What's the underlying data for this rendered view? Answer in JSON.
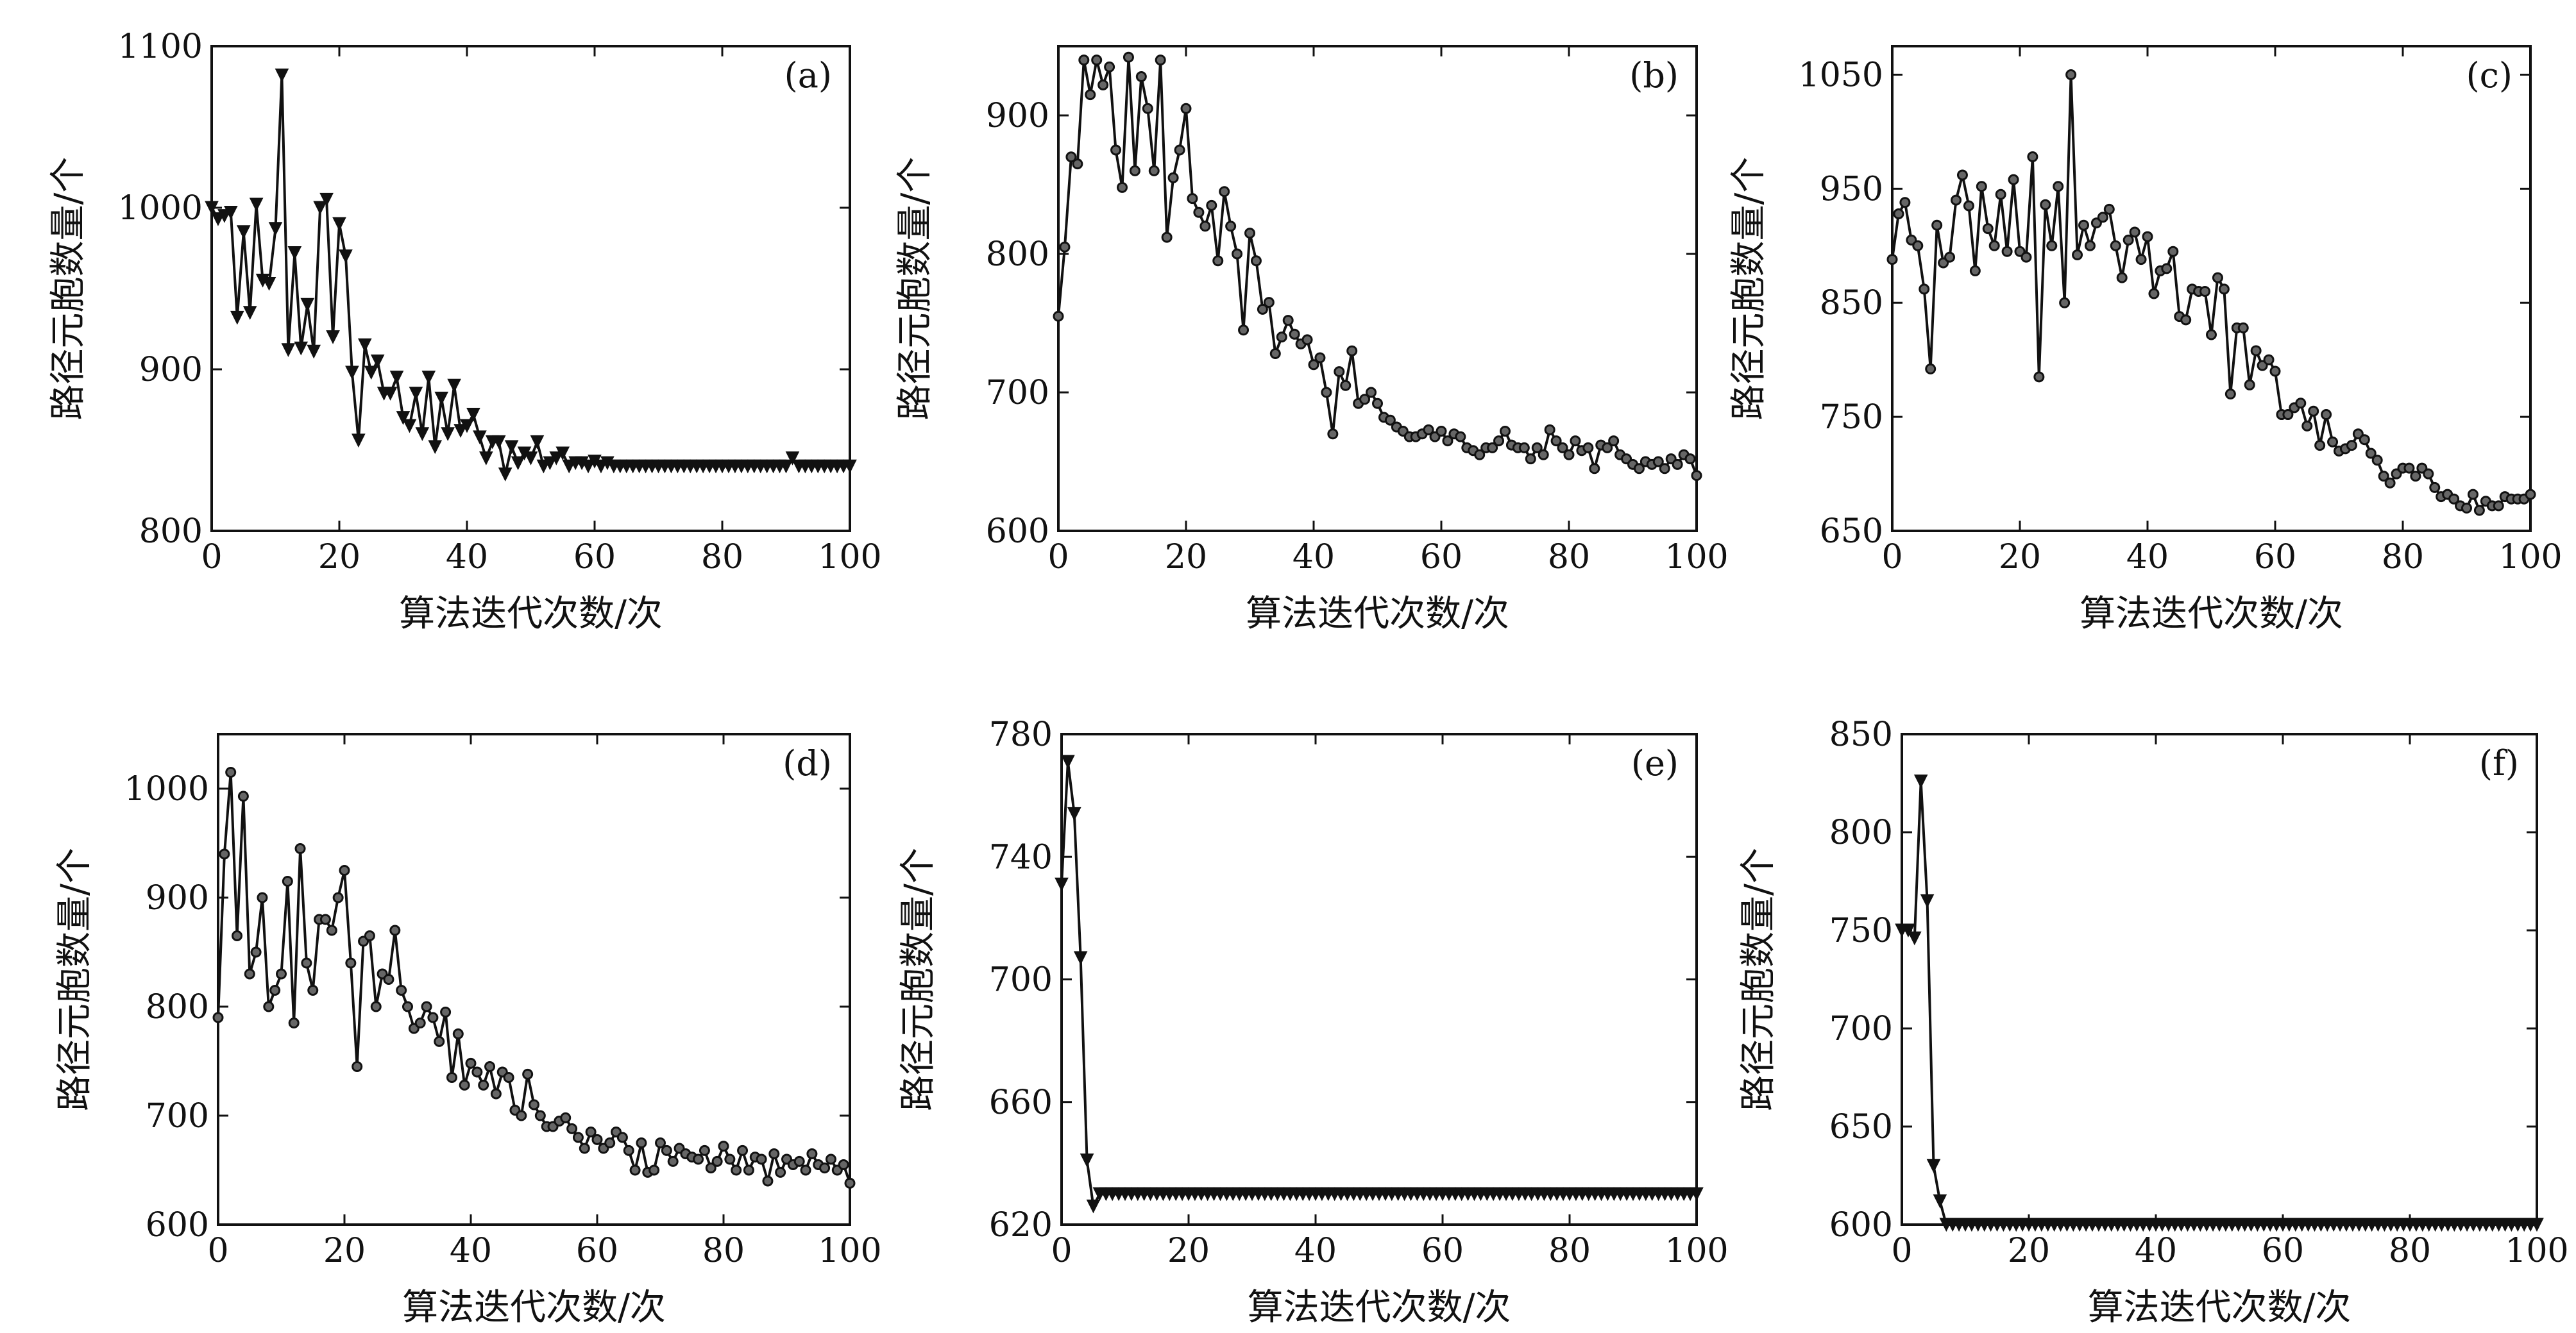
{
  "chart_data": [
    {
      "tag": "(a)",
      "type": "line",
      "marker": "triangle-down",
      "xlabel": "算法迭代次数/次",
      "ylabel": "路径元胞数量/个",
      "xlim": [
        0,
        100
      ],
      "ylim": [
        800,
        1100
      ],
      "xticks": [
        0,
        20,
        40,
        60,
        80,
        100
      ],
      "yticks": [
        800,
        900,
        1000,
        1100
      ],
      "x": [
        0,
        1,
        2,
        3,
        4,
        5,
        6,
        7,
        8,
        9,
        10,
        11,
        12,
        13,
        14,
        15,
        16,
        17,
        18,
        19,
        20,
        21,
        22,
        23,
        24,
        25,
        26,
        27,
        28,
        29,
        30,
        31,
        32,
        33,
        34,
        35,
        36,
        37,
        38,
        39,
        40,
        41,
        42,
        43,
        44,
        45,
        46,
        47,
        48,
        49,
        50,
        51,
        52,
        53,
        54,
        55,
        56,
        57,
        58,
        59,
        60,
        61,
        62,
        63,
        64,
        65,
        66,
        67,
        68,
        69,
        70,
        71,
        72,
        73,
        74,
        75,
        76,
        77,
        78,
        79,
        80,
        81,
        82,
        83,
        84,
        85,
        86,
        87,
        88,
        89,
        90,
        91,
        92,
        93,
        94,
        95,
        96,
        97,
        98,
        99,
        100
      ],
      "y": [
        1000,
        993,
        995,
        997,
        932,
        985,
        935,
        1002,
        955,
        953,
        987,
        1082,
        912,
        972,
        913,
        940,
        911,
        1000,
        1005,
        920,
        990,
        970,
        898,
        856,
        915,
        898,
        905,
        885,
        885,
        895,
        870,
        865,
        885,
        860,
        895,
        852,
        882,
        860,
        890,
        862,
        865,
        872,
        858,
        845,
        855,
        855,
        835,
        852,
        842,
        848,
        845,
        855,
        840,
        842,
        845,
        848,
        840,
        842,
        842,
        840,
        843,
        840,
        842,
        840,
        840,
        840,
        840,
        840,
        840,
        840,
        840,
        840,
        840,
        840,
        840,
        840,
        840,
        840,
        840,
        840,
        840,
        840,
        840,
        840,
        840,
        840,
        840,
        840,
        840,
        840,
        840,
        845,
        840,
        840,
        840,
        840,
        840,
        840,
        840,
        840,
        840
      ]
    },
    {
      "tag": "(b)",
      "type": "line",
      "marker": "circle",
      "xlabel": "算法迭代次数/次",
      "ylabel": "路径元胞数量/个",
      "xlim": [
        0,
        100
      ],
      "ylim": [
        600,
        950
      ],
      "xticks": [
        0,
        20,
        40,
        60,
        80,
        100
      ],
      "yticks": [
        600,
        700,
        800,
        900
      ],
      "x": [
        0,
        1,
        2,
        3,
        4,
        5,
        6,
        7,
        8,
        9,
        10,
        11,
        12,
        13,
        14,
        15,
        16,
        17,
        18,
        19,
        20,
        21,
        22,
        23,
        24,
        25,
        26,
        27,
        28,
        29,
        30,
        31,
        32,
        33,
        34,
        35,
        36,
        37,
        38,
        39,
        40,
        41,
        42,
        43,
        44,
        45,
        46,
        47,
        48,
        49,
        50,
        51,
        52,
        53,
        54,
        55,
        56,
        57,
        58,
        59,
        60,
        61,
        62,
        63,
        64,
        65,
        66,
        67,
        68,
        69,
        70,
        71,
        72,
        73,
        74,
        75,
        76,
        77,
        78,
        79,
        80,
        81,
        82,
        83,
        84,
        85,
        86,
        87,
        88,
        89,
        90,
        91,
        92,
        93,
        94,
        95,
        96,
        97,
        98,
        99,
        100
      ],
      "y": [
        755,
        805,
        870,
        865,
        940,
        915,
        940,
        922,
        935,
        875,
        848,
        942,
        860,
        928,
        905,
        860,
        940,
        812,
        855,
        875,
        905,
        840,
        830,
        820,
        835,
        795,
        845,
        820,
        800,
        745,
        815,
        795,
        760,
        765,
        728,
        740,
        752,
        742,
        735,
        738,
        720,
        725,
        700,
        670,
        715,
        705,
        730,
        692,
        695,
        700,
        692,
        682,
        680,
        675,
        672,
        668,
        668,
        670,
        673,
        668,
        672,
        665,
        670,
        668,
        660,
        658,
        655,
        660,
        660,
        665,
        672,
        662,
        660,
        660,
        652,
        660,
        655,
        673,
        665,
        660,
        655,
        665,
        658,
        660,
        645,
        662,
        660,
        665,
        655,
        652,
        648,
        645,
        650,
        648,
        650,
        645,
        652,
        648,
        655,
        652,
        640
      ]
    },
    {
      "tag": "(c)",
      "type": "line",
      "marker": "circle",
      "xlabel": "算法迭代次数/次",
      "ylabel": "路径元胞数量/个",
      "xlim": [
        0,
        100
      ],
      "ylim": [
        650,
        1075
      ],
      "xticks": [
        0,
        20,
        40,
        60,
        80,
        100
      ],
      "yticks": [
        650,
        750,
        850,
        950,
        1050
      ],
      "x": [
        0,
        1,
        2,
        3,
        4,
        5,
        6,
        7,
        8,
        9,
        10,
        11,
        12,
        13,
        14,
        15,
        16,
        17,
        18,
        19,
        20,
        21,
        22,
        23,
        24,
        25,
        26,
        27,
        28,
        29,
        30,
        31,
        32,
        33,
        34,
        35,
        36,
        37,
        38,
        39,
        40,
        41,
        42,
        43,
        44,
        45,
        46,
        47,
        48,
        49,
        50,
        51,
        52,
        53,
        54,
        55,
        56,
        57,
        58,
        59,
        60,
        61,
        62,
        63,
        64,
        65,
        66,
        67,
        68,
        69,
        70,
        71,
        72,
        73,
        74,
        75,
        76,
        77,
        78,
        79,
        80,
        81,
        82,
        83,
        84,
        85,
        86,
        87,
        88,
        89,
        90,
        91,
        92,
        93,
        94,
        95,
        96,
        97,
        98,
        99,
        100
      ],
      "y": [
        888,
        928,
        938,
        905,
        900,
        862,
        792,
        918,
        885,
        890,
        940,
        962,
        935,
        878,
        952,
        915,
        900,
        945,
        895,
        958,
        895,
        890,
        978,
        785,
        936,
        900,
        952,
        850,
        1050,
        892,
        918,
        900,
        920,
        925,
        932,
        900,
        872,
        905,
        912,
        888,
        908,
        858,
        878,
        880,
        895,
        838,
        835,
        862,
        860,
        860,
        822,
        872,
        862,
        770,
        828,
        828,
        778,
        808,
        795,
        800,
        790,
        752,
        752,
        758,
        762,
        742,
        755,
        725,
        752,
        728,
        720,
        722,
        725,
        735,
        730,
        718,
        712,
        698,
        692,
        700,
        705,
        705,
        698,
        705,
        700,
        688,
        680,
        682,
        678,
        672,
        670,
        682,
        668,
        676,
        672,
        672,
        680,
        678,
        678,
        678,
        682
      ]
    },
    {
      "tag": "(d)",
      "type": "line",
      "marker": "circle",
      "xlabel": "算法迭代次数/次",
      "ylabel": "路径元胞数量/个",
      "xlim": [
        0,
        100
      ],
      "ylim": [
        600,
        1050
      ],
      "xticks": [
        0,
        20,
        40,
        60,
        80,
        100
      ],
      "yticks": [
        600,
        700,
        800,
        900,
        1000
      ],
      "x": [
        0,
        1,
        2,
        3,
        4,
        5,
        6,
        7,
        8,
        9,
        10,
        11,
        12,
        13,
        14,
        15,
        16,
        17,
        18,
        19,
        20,
        21,
        22,
        23,
        24,
        25,
        26,
        27,
        28,
        29,
        30,
        31,
        32,
        33,
        34,
        35,
        36,
        37,
        38,
        39,
        40,
        41,
        42,
        43,
        44,
        45,
        46,
        47,
        48,
        49,
        50,
        51,
        52,
        53,
        54,
        55,
        56,
        57,
        58,
        59,
        60,
        61,
        62,
        63,
        64,
        65,
        66,
        67,
        68,
        69,
        70,
        71,
        72,
        73,
        74,
        75,
        76,
        77,
        78,
        79,
        80,
        81,
        82,
        83,
        84,
        85,
        86,
        87,
        88,
        89,
        90,
        91,
        92,
        93,
        94,
        95,
        96,
        97,
        98,
        99,
        100
      ],
      "y": [
        790,
        940,
        1015,
        865,
        993,
        830,
        850,
        900,
        800,
        815,
        830,
        915,
        785,
        945,
        840,
        815,
        880,
        880,
        870,
        900,
        925,
        840,
        745,
        860,
        865,
        800,
        830,
        825,
        870,
        815,
        800,
        780,
        785,
        800,
        790,
        768,
        795,
        735,
        775,
        728,
        748,
        740,
        728,
        745,
        720,
        740,
        735,
        705,
        700,
        738,
        710,
        700,
        690,
        690,
        695,
        698,
        688,
        680,
        670,
        685,
        678,
        670,
        675,
        685,
        680,
        668,
        650,
        675,
        648,
        650,
        675,
        668,
        658,
        670,
        665,
        662,
        660,
        668,
        652,
        658,
        672,
        660,
        650,
        668,
        650,
        662,
        660,
        640,
        665,
        648,
        660,
        655,
        658,
        650,
        665,
        655,
        652,
        660,
        650,
        655,
        638
      ]
    },
    {
      "tag": "(e)",
      "type": "line",
      "marker": "triangle-down",
      "xlabel": "算法迭代次数/次",
      "ylabel": "路径元胞数量/个",
      "xlim": [
        0,
        100
      ],
      "ylim": [
        620,
        780
      ],
      "xticks": [
        0,
        20,
        40,
        60,
        80,
        100
      ],
      "yticks": [
        620,
        660,
        700,
        740,
        780
      ],
      "x": [
        0,
        1,
        2,
        3,
        4,
        5,
        6,
        7,
        8,
        9,
        10,
        11,
        12,
        13,
        14,
        15,
        16,
        17,
        18,
        19,
        20,
        21,
        22,
        23,
        24,
        25,
        26,
        27,
        28,
        29,
        30,
        31,
        32,
        33,
        34,
        35,
        36,
        37,
        38,
        39,
        40,
        41,
        42,
        43,
        44,
        45,
        46,
        47,
        48,
        49,
        50,
        51,
        52,
        53,
        54,
        55,
        56,
        57,
        58,
        59,
        60,
        61,
        62,
        63,
        64,
        65,
        66,
        67,
        68,
        69,
        70,
        71,
        72,
        73,
        74,
        75,
        76,
        77,
        78,
        79,
        80,
        81,
        82,
        83,
        84,
        85,
        86,
        87,
        88,
        89,
        90,
        91,
        92,
        93,
        94,
        95,
        96,
        97,
        98,
        99,
        100
      ],
      "y": [
        731,
        771,
        754,
        707,
        641,
        626,
        630,
        630,
        630,
        630,
        630,
        630,
        630,
        630,
        630,
        630,
        630,
        630,
        630,
        630,
        630,
        630,
        630,
        630,
        630,
        630,
        630,
        630,
        630,
        630,
        630,
        630,
        630,
        630,
        630,
        630,
        630,
        630,
        630,
        630,
        630,
        630,
        630,
        630,
        630,
        630,
        630,
        630,
        630,
        630,
        630,
        630,
        630,
        630,
        630,
        630,
        630,
        630,
        630,
        630,
        630,
        630,
        630,
        630,
        630,
        630,
        630,
        630,
        630,
        630,
        630,
        630,
        630,
        630,
        630,
        630,
        630,
        630,
        630,
        630,
        630,
        630,
        630,
        630,
        630,
        630,
        630,
        630,
        630,
        630,
        630,
        630,
        630,
        630,
        630,
        630,
        630,
        630,
        630,
        630,
        630
      ]
    },
    {
      "tag": "(f)",
      "type": "line",
      "marker": "triangle-down",
      "xlabel": "算法迭代次数/次",
      "ylabel": "路径元胞数量/个",
      "xlim": [
        0,
        100
      ],
      "ylim": [
        600,
        850
      ],
      "xticks": [
        0,
        20,
        40,
        60,
        80,
        100
      ],
      "yticks": [
        600,
        650,
        700,
        750,
        800,
        850
      ],
      "x": [
        0,
        1,
        2,
        3,
        4,
        5,
        6,
        7,
        8,
        9,
        10,
        11,
        12,
        13,
        14,
        15,
        16,
        17,
        18,
        19,
        20,
        21,
        22,
        23,
        24,
        25,
        26,
        27,
        28,
        29,
        30,
        31,
        32,
        33,
        34,
        35,
        36,
        37,
        38,
        39,
        40,
        41,
        42,
        43,
        44,
        45,
        46,
        47,
        48,
        49,
        50,
        51,
        52,
        53,
        54,
        55,
        56,
        57,
        58,
        59,
        60,
        61,
        62,
        63,
        64,
        65,
        66,
        67,
        68,
        69,
        70,
        71,
        72,
        73,
        74,
        75,
        76,
        77,
        78,
        79,
        80,
        81,
        82,
        83,
        84,
        85,
        86,
        87,
        88,
        89,
        90,
        91,
        92,
        93,
        94,
        95,
        96,
        97,
        98,
        99,
        100
      ],
      "y": [
        750,
        750,
        746,
        826,
        765,
        630,
        612,
        600,
        600,
        600,
        600,
        600,
        600,
        600,
        600,
        600,
        600,
        600,
        600,
        600,
        600,
        600,
        600,
        600,
        600,
        600,
        600,
        600,
        600,
        600,
        600,
        600,
        600,
        600,
        600,
        600,
        600,
        600,
        600,
        600,
        600,
        600,
        600,
        600,
        600,
        600,
        600,
        600,
        600,
        600,
        600,
        600,
        600,
        600,
        600,
        600,
        600,
        600,
        600,
        600,
        600,
        600,
        600,
        600,
        600,
        600,
        600,
        600,
        600,
        600,
        600,
        600,
        600,
        600,
        600,
        600,
        600,
        600,
        600,
        600,
        600,
        600,
        600,
        600,
        600,
        600,
        600,
        600,
        600,
        600,
        600,
        600,
        600,
        600,
        600,
        600,
        600,
        600,
        600,
        600,
        600
      ]
    }
  ]
}
